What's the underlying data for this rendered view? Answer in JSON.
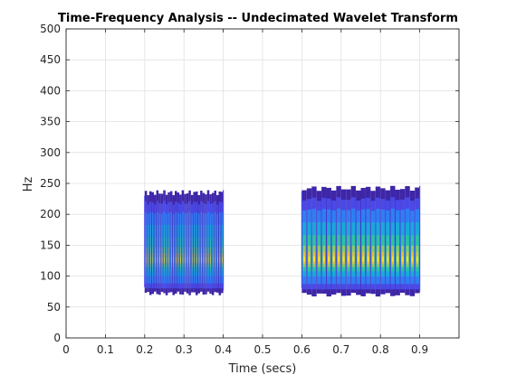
{
  "chart_data": {
    "type": "heatmap",
    "title": "Time-Frequency Analysis -- Undecimated Wavelet Transform",
    "xlabel": "Time (secs)",
    "ylabel": "Hz",
    "xlim": [
      0,
      1
    ],
    "ylim": [
      0,
      500
    ],
    "xticks": [
      "0",
      "0.1",
      "0.2",
      "0.3",
      "0.4",
      "0.5",
      "0.6",
      "0.7",
      "0.8",
      "0.9"
    ],
    "yticks": [
      "0",
      "50",
      "100",
      "150",
      "200",
      "250",
      "300",
      "350",
      "400",
      "450",
      "500"
    ],
    "grid": true,
    "colormap": [
      "#3e26a8",
      "#4a49e8",
      "#2f7ef3",
      "#19a9d9",
      "#2ec29f",
      "#93c95f",
      "#e6be3b",
      "#f9e321"
    ],
    "segments": [
      {
        "t_start": 0.2,
        "t_end": 0.4,
        "f_low": 72,
        "f_high": 235,
        "f_peak": 127,
        "bursts": 34
      },
      {
        "t_start": 0.6,
        "t_end": 0.9,
        "f_low": 70,
        "f_high": 242,
        "f_peak": 128,
        "bursts": 24
      }
    ]
  }
}
